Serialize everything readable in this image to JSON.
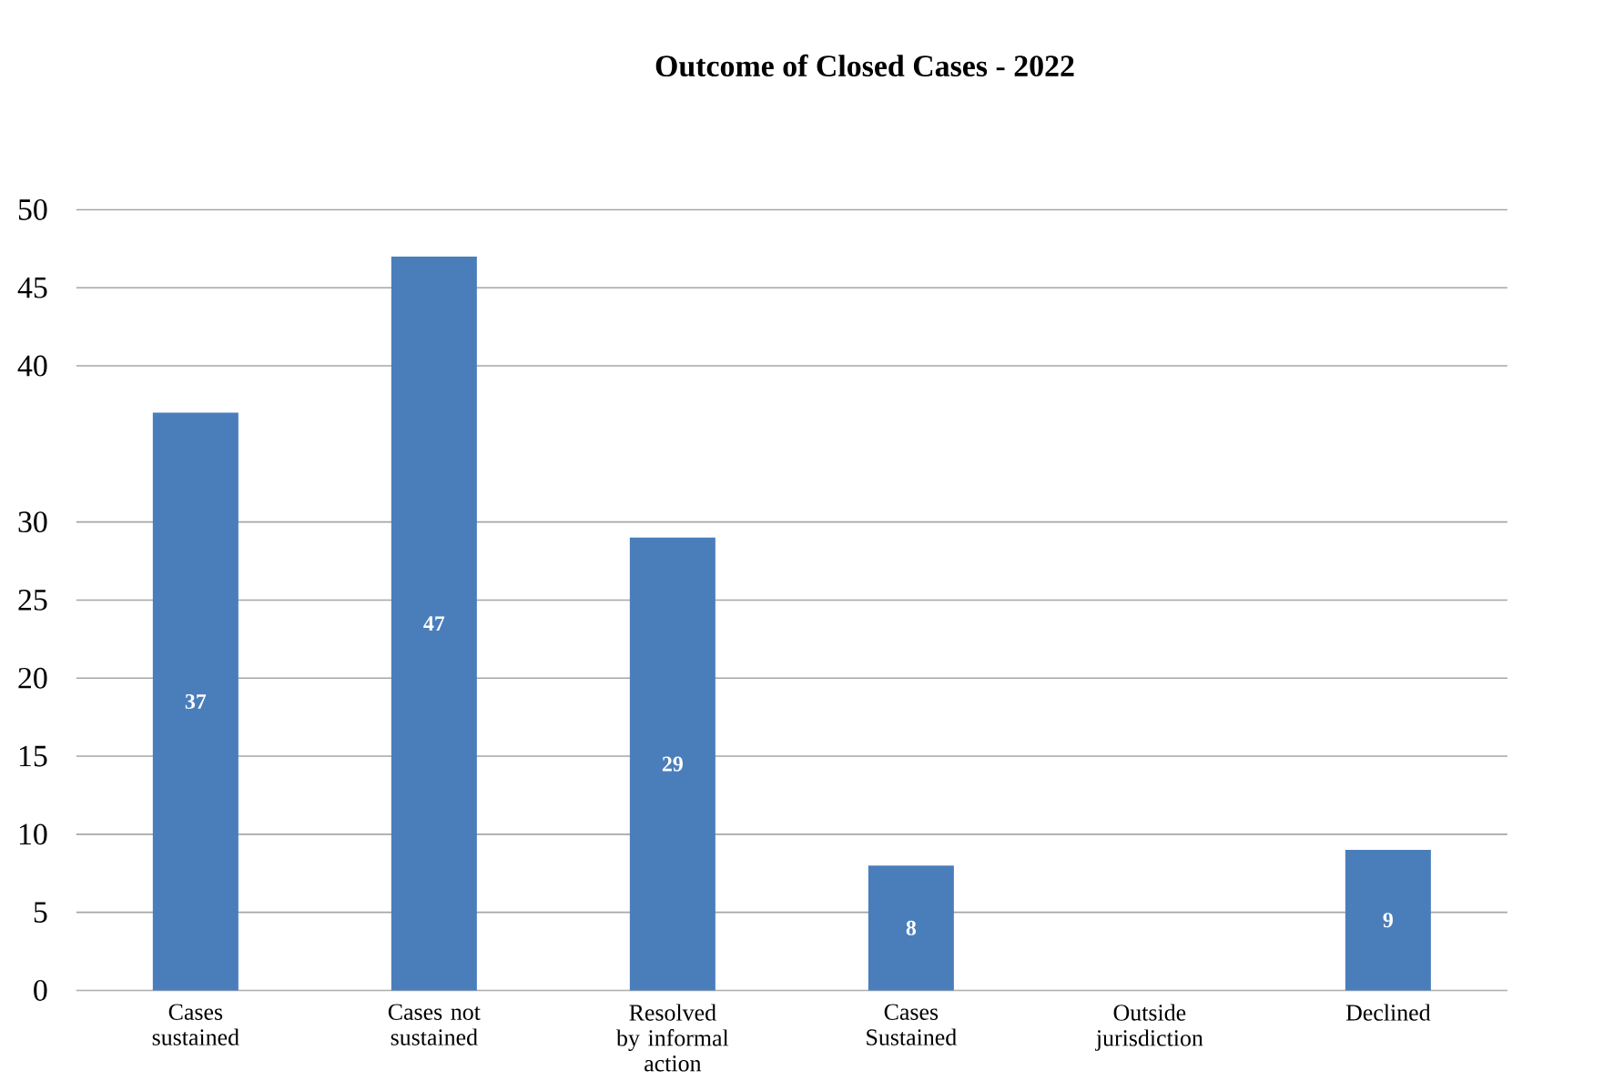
{
  "chart_data": {
    "type": "bar",
    "title": "Outcome of Closed Cases - 2022",
    "categories": [
      "Cases sustained",
      "Cases not sustained",
      "Resolved by informal action",
      "Cases Sustained",
      "Outside jurisdiction",
      "Declined"
    ],
    "values": [
      37,
      47,
      29,
      8,
      0,
      9
    ],
    "value_labels": [
      "37",
      "47",
      "29",
      "8",
      null,
      "9"
    ],
    "color": "#4a7ebb",
    "ylim": [
      0,
      50
    ],
    "yticks": [
      0,
      5,
      10,
      15,
      20,
      25,
      30,
      40,
      45,
      50
    ],
    "grid": "y"
  }
}
